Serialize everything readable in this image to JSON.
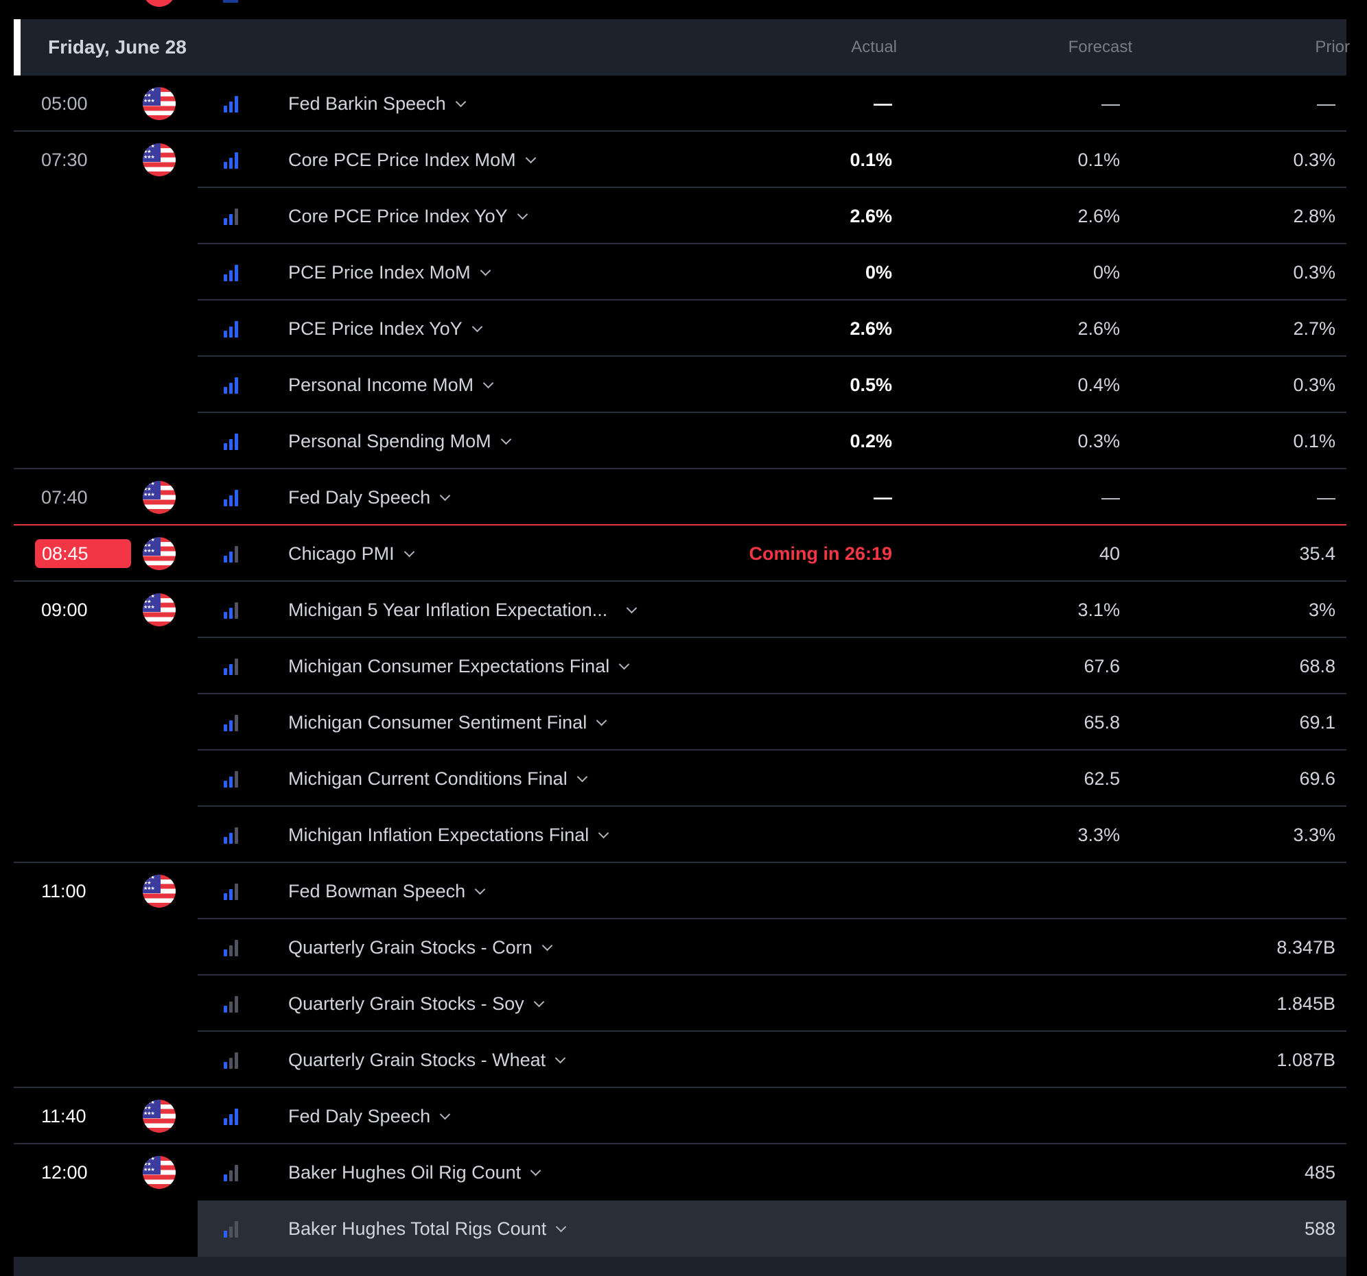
{
  "header": {
    "date": "Friday, June 28",
    "col_actual": "Actual",
    "col_forecast": "Forecast",
    "col_prior": "Prior"
  },
  "colors": {
    "accent": "#2962ff",
    "live": "#f23645",
    "row_highlight": "#2a2e39"
  },
  "rows": [
    {
      "time": "05:00",
      "name": "Fed Barkin Speech",
      "actual": "—",
      "forecast": "—",
      "prior": "—"
    },
    {
      "time": "07:30",
      "name": "Core PCE Price Index MoM",
      "actual": "0.1%",
      "forecast": "0.1%",
      "prior": "0.3%"
    },
    {
      "name": "Core PCE Price Index YoY",
      "actual": "2.6%",
      "forecast": "2.6%",
      "prior": "2.8%"
    },
    {
      "name": "PCE Price Index MoM",
      "actual": "0%",
      "forecast": "0%",
      "prior": "0.3%"
    },
    {
      "name": "PCE Price Index YoY",
      "actual": "2.6%",
      "forecast": "2.6%",
      "prior": "2.7%"
    },
    {
      "name": "Personal Income MoM",
      "actual": "0.5%",
      "forecast": "0.4%",
      "prior": "0.3%"
    },
    {
      "name": "Personal Spending MoM",
      "actual": "0.2%",
      "forecast": "0.3%",
      "prior": "0.1%"
    },
    {
      "time": "07:40",
      "name": "Fed Daly Speech",
      "actual": "—",
      "forecast": "—",
      "prior": "—"
    },
    {
      "time": "08:45",
      "name": "Chicago PMI",
      "actual": "Coming in 26:19",
      "forecast": "40",
      "prior": "35.4"
    },
    {
      "time": "09:00",
      "name": "Michigan 5 Year Inflation Expectation...",
      "forecast": "3.1%",
      "prior": "3%"
    },
    {
      "name": "Michigan Consumer Expectations Final",
      "forecast": "67.6",
      "prior": "68.8"
    },
    {
      "name": "Michigan Consumer Sentiment Final",
      "forecast": "65.8",
      "prior": "69.1"
    },
    {
      "name": "Michigan Current Conditions Final",
      "forecast": "62.5",
      "prior": "69.6"
    },
    {
      "name": "Michigan Inflation Expectations Final",
      "forecast": "3.3%",
      "prior": "3.3%"
    },
    {
      "time": "11:00",
      "name": "Fed Bowman Speech"
    },
    {
      "name": "Quarterly Grain Stocks - Corn",
      "prior": "8.347B"
    },
    {
      "name": "Quarterly Grain Stocks - Soy",
      "prior": "1.845B"
    },
    {
      "name": "Quarterly Grain Stocks - Wheat",
      "prior": "1.087B"
    },
    {
      "time": "11:40",
      "name": "Fed Daly Speech"
    },
    {
      "time": "12:00",
      "name": "Baker Hughes Oil Rig Count",
      "prior": "485"
    },
    {
      "name": "Baker Hughes Total Rigs Count",
      "prior": "588"
    }
  ]
}
